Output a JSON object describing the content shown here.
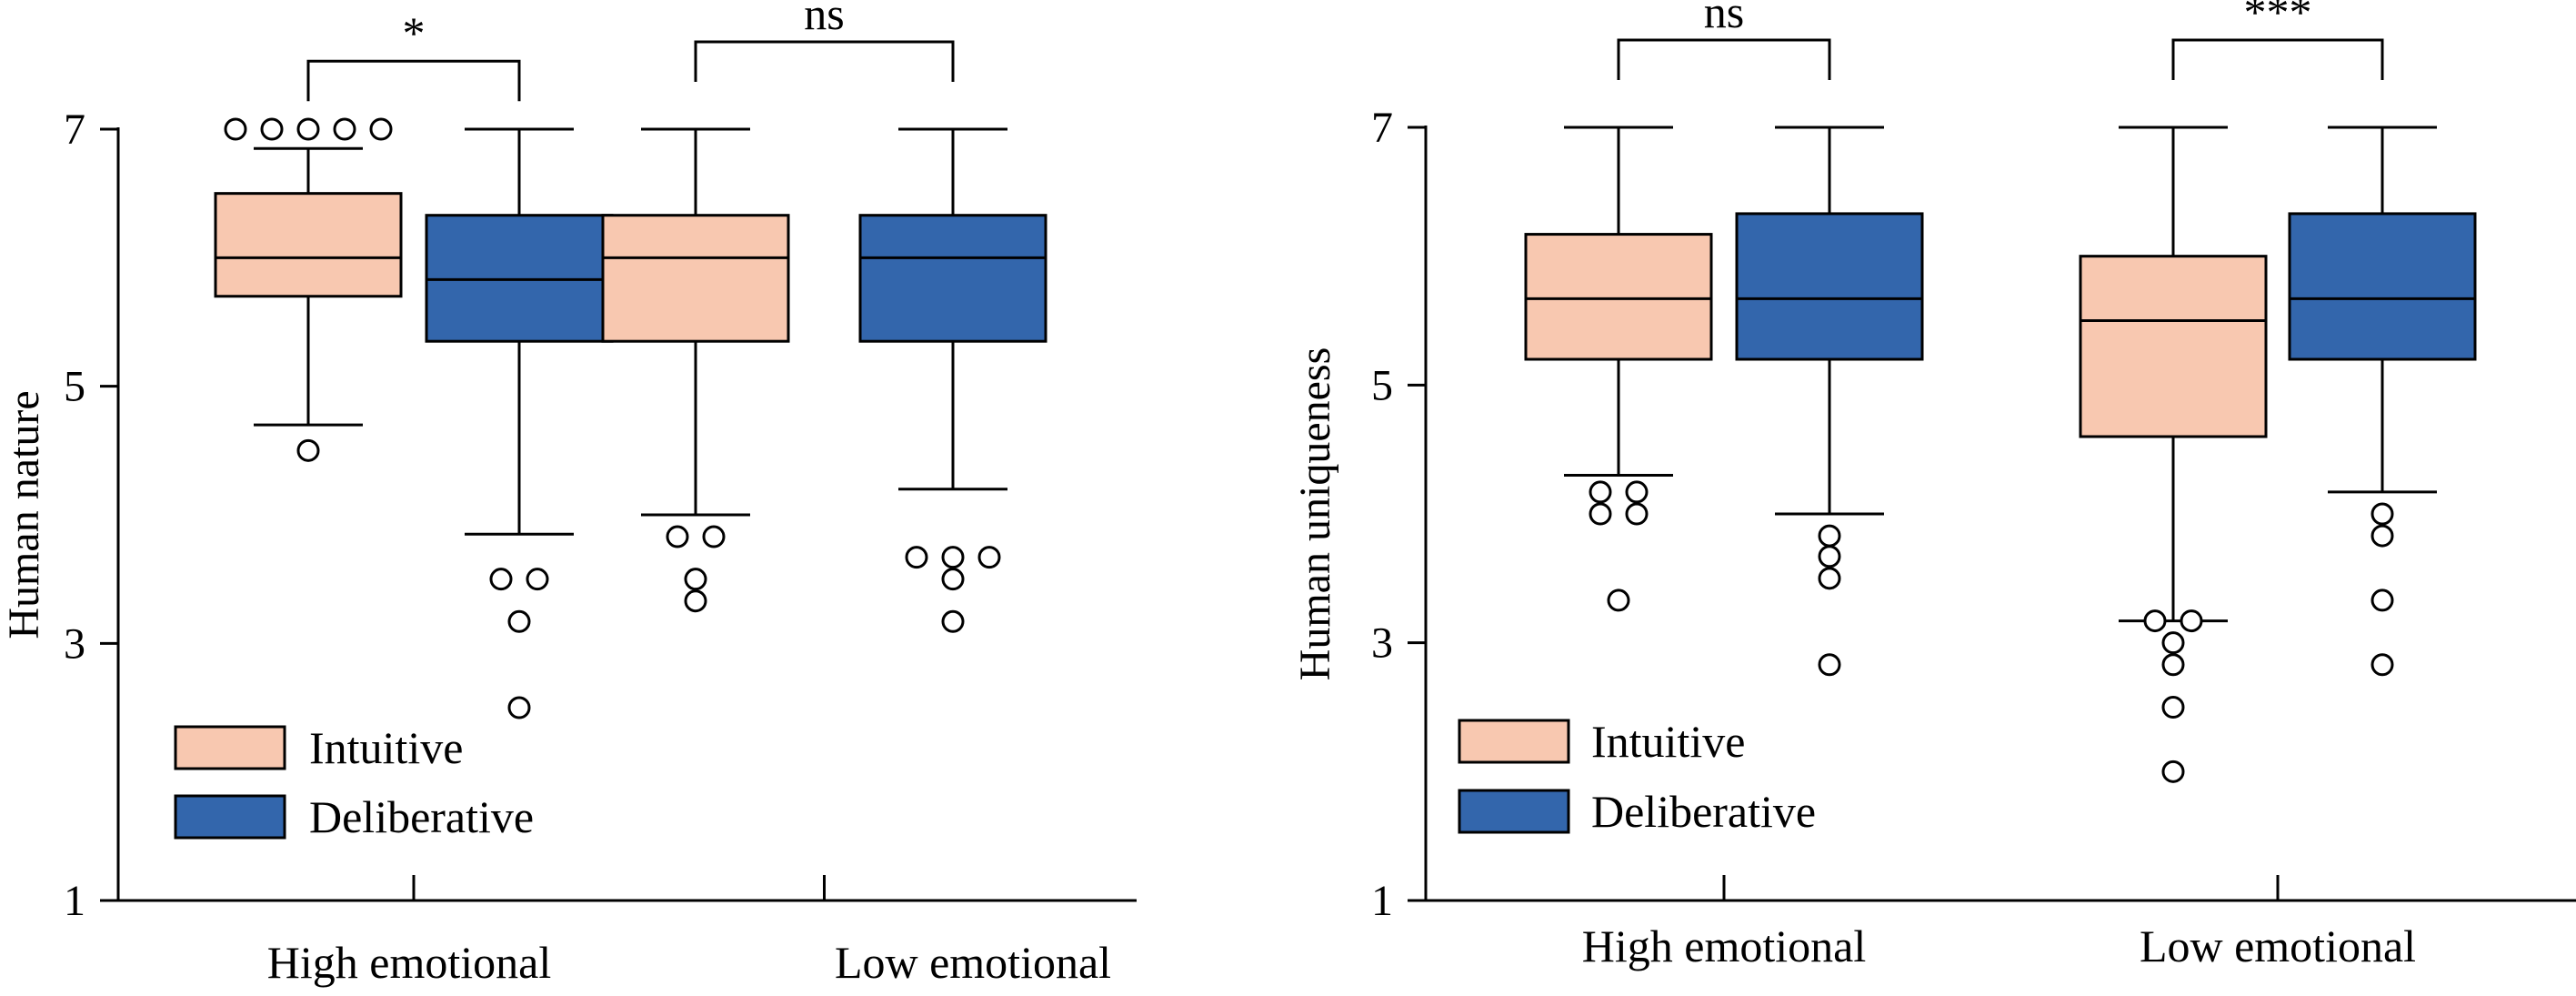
{
  "chart_data": [
    {
      "type": "box",
      "ylabel": "Human nature",
      "ylim": [
        1,
        7
      ],
      "yticks": [
        "1",
        "3",
        "5",
        "7"
      ],
      "categories": [
        "High emotional",
        "Low emotional"
      ],
      "legend": [
        {
          "name": "Intuitive",
          "color": "#f8c8b0"
        },
        {
          "name": "Deliberative",
          "color": "#3366ac"
        }
      ],
      "significance": [
        "*",
        "ns"
      ],
      "groups": [
        {
          "category": "High emotional",
          "boxes": [
            {
              "series": "Intuitive",
              "whisker_low": 4.7,
              "q1": 5.7,
              "median": 6.0,
              "q3": 6.5,
              "whisker_high": 6.85,
              "outliers": [
                7.0,
                7.0,
                7.0,
                7.0,
                7.0,
                4.5
              ]
            },
            {
              "series": "Deliberative",
              "whisker_low": 3.85,
              "q1": 5.35,
              "median": 5.83,
              "q3": 6.33,
              "whisker_high": 7.0,
              "outliers": [
                3.5,
                3.5,
                3.17,
                2.5
              ]
            }
          ]
        },
        {
          "category": "Low emotional",
          "boxes": [
            {
              "series": "Intuitive",
              "whisker_low": 4.0,
              "q1": 5.35,
              "median": 6.0,
              "q3": 6.33,
              "whisker_high": 7.0,
              "outliers": [
                3.83,
                3.83,
                3.5,
                3.33
              ]
            },
            {
              "series": "Deliberative",
              "whisker_low": 4.2,
              "q1": 5.35,
              "median": 6.0,
              "q3": 6.33,
              "whisker_high": 7.0,
              "outliers": [
                3.67,
                3.67,
                3.67,
                3.5,
                3.17
              ]
            }
          ]
        }
      ]
    },
    {
      "type": "box",
      "ylabel": "Human uniqueness",
      "ylim": [
        1,
        7
      ],
      "yticks": [
        "1",
        "3",
        "5",
        "7"
      ],
      "categories": [
        "High emotional",
        "Low emotional"
      ],
      "legend": [
        {
          "name": "Intuitive",
          "color": "#f8c8b0"
        },
        {
          "name": "Deliberative",
          "color": "#3366ac"
        }
      ],
      "significance": [
        "ns",
        "***"
      ],
      "groups": [
        {
          "category": "High emotional",
          "boxes": [
            {
              "series": "Intuitive",
              "whisker_low": 4.3,
              "q1": 5.2,
              "median": 5.67,
              "q3": 6.17,
              "whisker_high": 7.0,
              "outliers": [
                4.17,
                4.17,
                4.0,
                4.0,
                3.33
              ]
            },
            {
              "series": "Deliberative",
              "whisker_low": 4.0,
              "q1": 5.2,
              "median": 5.67,
              "q3": 6.33,
              "whisker_high": 7.0,
              "outliers": [
                3.83,
                3.67,
                3.5,
                2.83
              ]
            }
          ]
        },
        {
          "category": "Low emotional",
          "boxes": [
            {
              "series": "Intuitive",
              "whisker_low": 3.17,
              "q1": 4.6,
              "median": 5.5,
              "q3": 6.0,
              "whisker_high": 7.0,
              "outliers": [
                3.17,
                3.17,
                3.0,
                2.83,
                2.5,
                2.0
              ]
            },
            {
              "series": "Deliberative",
              "whisker_low": 4.17,
              "q1": 5.2,
              "median": 5.67,
              "q3": 6.33,
              "whisker_high": 7.0,
              "outliers": [
                4.0,
                3.83,
                3.33,
                2.83
              ]
            }
          ]
        }
      ]
    }
  ]
}
